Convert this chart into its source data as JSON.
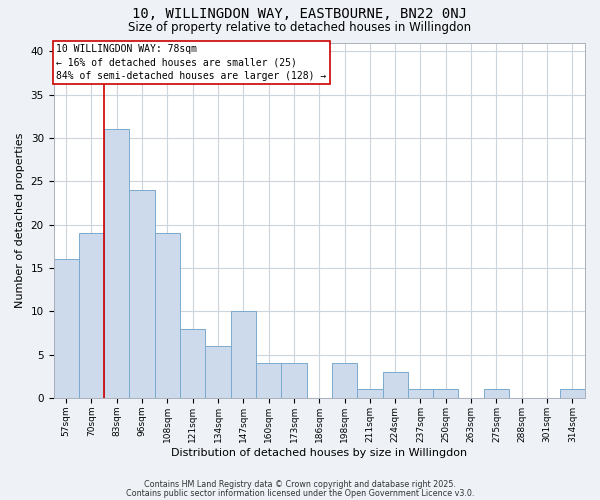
{
  "title": "10, WILLINGDON WAY, EASTBOURNE, BN22 0NJ",
  "subtitle": "Size of property relative to detached houses in Willingdon",
  "xlabel": "Distribution of detached houses by size in Willingdon",
  "ylabel": "Number of detached properties",
  "bin_labels": [
    "57sqm",
    "70sqm",
    "83sqm",
    "96sqm",
    "108sqm",
    "121sqm",
    "134sqm",
    "147sqm",
    "160sqm",
    "173sqm",
    "186sqm",
    "198sqm",
    "211sqm",
    "224sqm",
    "237sqm",
    "250sqm",
    "263sqm",
    "275sqm",
    "288sqm",
    "301sqm",
    "314sqm"
  ],
  "bar_values": [
    16,
    19,
    31,
    24,
    19,
    8,
    6,
    10,
    4,
    4,
    0,
    4,
    1,
    3,
    1,
    1,
    0,
    1,
    0,
    0,
    1
  ],
  "bar_color": "#ccdaec",
  "bar_edge_color": "#7aaacf",
  "vline_color": "#cc0000",
  "ylim": [
    0,
    41
  ],
  "yticks": [
    0,
    5,
    10,
    15,
    20,
    25,
    30,
    35,
    40
  ],
  "annotation_title": "10 WILLINGDON WAY: 78sqm",
  "annotation_line1": "← 16% of detached houses are smaller (25)",
  "annotation_line2": "84% of semi-detached houses are larger (128) →",
  "annotation_box_color": "#ffffff",
  "annotation_border_color": "#cc0000",
  "footer1": "Contains HM Land Registry data © Crown copyright and database right 2025.",
  "footer2": "Contains public sector information licensed under the Open Government Licence v3.0.",
  "background_color": "#eef2f7",
  "plot_bg_color": "#ffffff",
  "grid_color": "#ccd4de"
}
